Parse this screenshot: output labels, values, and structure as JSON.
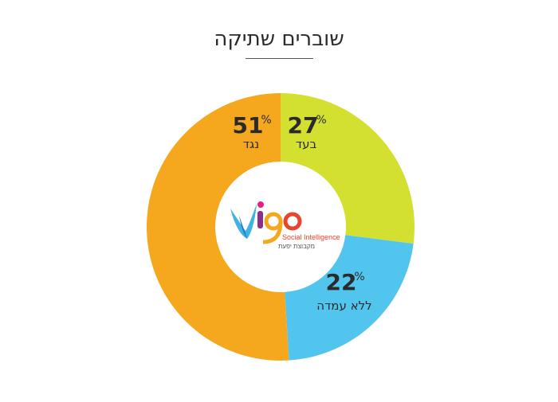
{
  "chart_data": {
    "type": "pie",
    "title": "שוברים שתיקה",
    "percent_sign": "%",
    "slices": [
      {
        "label": "בעד",
        "value": 27,
        "color": "#d3e02f"
      },
      {
        "label": "ללא עמדה",
        "value": 22,
        "color": "#52c5ef"
      },
      {
        "label": "נגד",
        "value": 51,
        "color": "#f5a81e"
      }
    ]
  },
  "logo": {
    "name": "vigo",
    "tagline": "Social Intelligence",
    "subtitle": "מקבוצת יפעת"
  }
}
